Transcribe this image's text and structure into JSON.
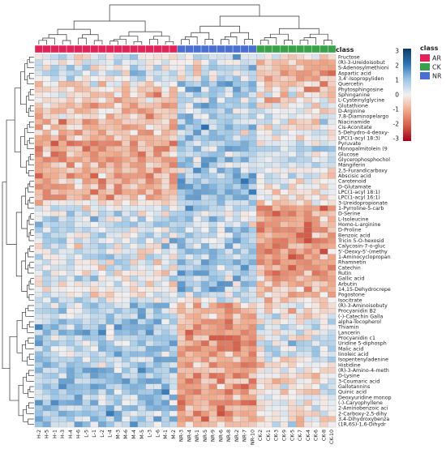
{
  "chart_data": {
    "type": "heatmap",
    "title": "",
    "color_scale": {
      "min": -3,
      "max": 3,
      "ticks": [
        "3",
        "2",
        "1",
        "0",
        "-1",
        "-2",
        "-3"
      ],
      "colors": [
        "#0b3a66",
        "#2f74b5",
        "#9ac5e6",
        "#f3f0f0",
        "#f0aa8c",
        "#d45e4a",
        "#a3001c"
      ]
    },
    "class_legend": {
      "title": "class",
      "header_label": "class",
      "entries": [
        {
          "name": "AR",
          "color": "#e0245a"
        },
        {
          "name": "CK",
          "color": "#3aa04a"
        },
        {
          "name": "NR",
          "color": "#4b6fd0"
        }
      ]
    },
    "columns": [
      "H-2",
      "H-5",
      "H-1",
      "H-3",
      "H-4",
      "H-6",
      "L-5",
      "L-1",
      "L-2",
      "L-4",
      "M-3",
      "M-6",
      "M-4",
      "M-5",
      "L-3",
      "L-6",
      "M-1",
      "M-2",
      "NR-3",
      "NR-4",
      "NR-1",
      "NR-5",
      "NR-9",
      "NR-6",
      "NR-8",
      "NR-2",
      "NR-7",
      "NR-10",
      "CK-2",
      "CK-1",
      "CK-3",
      "CK-9",
      "CK-5",
      "CK-7",
      "CK-4",
      "CK-6",
      "CK-8",
      "CK-10"
    ],
    "column_classes": [
      "AR",
      "AR",
      "AR",
      "AR",
      "AR",
      "AR",
      "AR",
      "AR",
      "AR",
      "AR",
      "AR",
      "AR",
      "AR",
      "AR",
      "AR",
      "AR",
      "AR",
      "AR",
      "NR",
      "NR",
      "NR",
      "NR",
      "NR",
      "NR",
      "NR",
      "NR",
      "NR",
      "NR",
      "CK",
      "CK",
      "CK",
      "CK",
      "CK",
      "CK",
      "CK",
      "CK",
      "CK",
      "CK"
    ],
    "rows": [
      {
        "label": "Fructose",
        "ar": 0.2,
        "nr": 0.6,
        "ck": -0.1
      },
      {
        "label": "(R)-3-Ureidoisobut",
        "ar": 0.4,
        "nr": 0.1,
        "ck": -0.8
      },
      {
        "label": "S-Adenosylmethioni",
        "ar": 0.3,
        "nr": 0.2,
        "ck": -0.9
      },
      {
        "label": "Aspartic acid",
        "ar": 0.4,
        "nr": 0.2,
        "ck": -1.0
      },
      {
        "label": "3,4'-Isopropyliden",
        "ar": 0.2,
        "nr": 0.4,
        "ck": -0.9
      },
      {
        "label": "Quercetin",
        "ar": -0.2,
        "nr": 0.7,
        "ck": -0.8
      },
      {
        "label": "Phytosphingosine",
        "ar": -0.4,
        "nr": 0.9,
        "ck": -0.6
      },
      {
        "label": "Sphinganine",
        "ar": -0.6,
        "nr": 0.8,
        "ck": -0.4
      },
      {
        "label": "L-Cysteinylglycine",
        "ar": -0.5,
        "nr": 0.6,
        "ck": -0.3
      },
      {
        "label": "Glutathione",
        "ar": -0.6,
        "nr": 0.7,
        "ck": -0.2
      },
      {
        "label": "D-Arginine",
        "ar": -0.7,
        "nr": 0.6,
        "ck": 0.0
      },
      {
        "label": "7,8-Diaminopelargo",
        "ar": -0.7,
        "nr": 0.5,
        "ck": 0.1
      },
      {
        "label": "Niacinamide",
        "ar": -0.8,
        "nr": 0.7,
        "ck": 0.0
      },
      {
        "label": "Cis-Aconitate",
        "ar": -0.8,
        "nr": 0.8,
        "ck": -0.1
      },
      {
        "label": "5-Dehydro-4-deoxy-",
        "ar": -0.9,
        "nr": 0.7,
        "ck": 0.2
      },
      {
        "label": "LPC(1-acyl 18:3)",
        "ar": -1.0,
        "nr": 1.0,
        "ck": 0.1
      },
      {
        "label": "Pyruvate",
        "ar": -1.1,
        "nr": 0.9,
        "ck": 0.2
      },
      {
        "label": "Monopalmitolein (9",
        "ar": -1.0,
        "nr": 0.8,
        "ck": 0.3
      },
      {
        "label": "Glucose",
        "ar": -1.0,
        "nr": 0.7,
        "ck": 0.4
      },
      {
        "label": "Glycerophosphochol",
        "ar": -1.1,
        "nr": 0.9,
        "ck": 0.2
      },
      {
        "label": "Mangiferin",
        "ar": -0.9,
        "nr": 0.7,
        "ck": 0.3
      },
      {
        "label": "2,5-Furandicarboxy",
        "ar": -1.0,
        "nr": 0.8,
        "ck": 0.2
      },
      {
        "label": "Abscisic acid",
        "ar": -1.0,
        "nr": 0.7,
        "ck": 0.3
      },
      {
        "label": "Carotenoid",
        "ar": -0.9,
        "nr": 1.0,
        "ck": 0.0
      },
      {
        "label": "D-Glutamate",
        "ar": -0.9,
        "nr": 1.1,
        "ck": -0.1
      },
      {
        "label": "LPC(1-acyl 18:1)",
        "ar": -1.0,
        "nr": 1.2,
        "ck": -0.1
      },
      {
        "label": "LPC(1-acyl 16:1)",
        "ar": -0.8,
        "nr": 1.1,
        "ck": -0.2
      },
      {
        "label": "3-Ureidopropionate",
        "ar": -0.4,
        "nr": 0.8,
        "ck": -0.5
      },
      {
        "label": "1-Pyrroline-5-carb",
        "ar": 0.3,
        "nr": 0.6,
        "ck": -1.1
      },
      {
        "label": "D-Serine",
        "ar": 0.4,
        "nr": 0.5,
        "ck": -1.1
      },
      {
        "label": "L-Isoleucine",
        "ar": 0.5,
        "nr": 0.4,
        "ck": -1.1
      },
      {
        "label": "Homo-L-arginine",
        "ar": 0.5,
        "nr": 0.5,
        "ck": -1.2
      },
      {
        "label": "D-Proline",
        "ar": 0.4,
        "nr": 0.6,
        "ck": -1.2
      },
      {
        "label": "Benzoic acid",
        "ar": 0.3,
        "nr": 0.7,
        "ck": -1.2
      },
      {
        "label": "Tricin 5-O-hexosid",
        "ar": 0.3,
        "nr": 0.8,
        "ck": -1.3
      },
      {
        "label": "Calycosin-7-o-gluc",
        "ar": 0.2,
        "nr": 0.8,
        "ck": -1.2
      },
      {
        "label": "5'-Deoxy-5'-(methy",
        "ar": 0.2,
        "nr": 0.9,
        "ck": -1.3
      },
      {
        "label": "1-Aminocyclopropan",
        "ar": 0.2,
        "nr": 0.8,
        "ck": -1.2
      },
      {
        "label": "Rhamnetin",
        "ar": 0.1,
        "nr": 0.9,
        "ck": -1.2
      },
      {
        "label": "Catechin",
        "ar": 0.1,
        "nr": 0.8,
        "ck": -1.1
      },
      {
        "label": "Rutin",
        "ar": 0.0,
        "nr": 0.9,
        "ck": -1.1
      },
      {
        "label": "Gallic acid",
        "ar": 0.0,
        "nr": 0.8,
        "ck": -1.0
      },
      {
        "label": "Arbutin",
        "ar": -0.1,
        "nr": 0.9,
        "ck": -0.9
      },
      {
        "label": "14,15-Dehydrocrepe",
        "ar": 0.0,
        "nr": 0.7,
        "ck": -0.8
      },
      {
        "label": "Pogostone",
        "ar": 0.1,
        "nr": 0.6,
        "ck": -0.8
      },
      {
        "label": "Isocitrate",
        "ar": 0.3,
        "nr": 0.2,
        "ck": -0.6
      },
      {
        "label": "(R)-3-Aminoisobuty",
        "ar": 0.6,
        "nr": -0.6,
        "ck": -0.2
      },
      {
        "label": "Procyanidin B2",
        "ar": 0.7,
        "nr": -0.8,
        "ck": -0.1
      },
      {
        "label": "(-)-Catechin Galla",
        "ar": 0.7,
        "nr": -0.9,
        "ck": 0.0
      },
      {
        "label": "alpha-Tocopherol",
        "ar": 0.8,
        "nr": -1.0,
        "ck": 0.0
      },
      {
        "label": "Thiamin",
        "ar": 0.8,
        "nr": -1.1,
        "ck": 0.1
      },
      {
        "label": "Lancerin",
        "ar": 0.8,
        "nr": -1.2,
        "ck": 0.2
      },
      {
        "label": "Procyanidin c1",
        "ar": 0.8,
        "nr": -1.3,
        "ck": 0.3
      },
      {
        "label": "Uridine 5-diphosph",
        "ar": 0.7,
        "nr": -1.4,
        "ck": 0.4
      },
      {
        "label": "Malic acid",
        "ar": 0.7,
        "nr": -1.5,
        "ck": 0.5
      },
      {
        "label": "linoleic acid",
        "ar": 0.7,
        "nr": -1.3,
        "ck": 0.4
      },
      {
        "label": "Isopentenyladenine",
        "ar": 0.8,
        "nr": -1.1,
        "ck": 0.1
      },
      {
        "label": "Histidine",
        "ar": 0.9,
        "nr": -1.2,
        "ck": 0.0
      },
      {
        "label": "(R)-3-Amino-4-meth",
        "ar": 0.9,
        "nr": -1.1,
        "ck": 0.0
      },
      {
        "label": "D-Lysine",
        "ar": 0.9,
        "nr": -1.2,
        "ck": -0.1
      },
      {
        "label": "3-Coumaric acid",
        "ar": 0.9,
        "nr": -1.1,
        "ck": -0.2
      },
      {
        "label": "Gallotannins",
        "ar": 0.8,
        "nr": -1.0,
        "ck": -0.1
      },
      {
        "label": "Quinic acid",
        "ar": 0.9,
        "nr": -1.1,
        "ck": -0.2
      },
      {
        "label": "Deoxyuridine monop",
        "ar": 0.8,
        "nr": -1.0,
        "ck": -0.2
      },
      {
        "label": "(-)-Caryophyllene",
        "ar": 0.8,
        "nr": -1.1,
        "ck": -0.1
      },
      {
        "label": "2-Aminobenzoic aci",
        "ar": 0.9,
        "nr": -1.0,
        "ck": -0.2
      },
      {
        "label": "2-Carboxy-2,5-dihy",
        "ar": 0.8,
        "nr": -1.1,
        "ck": -0.1
      },
      {
        "label": "3,4-Dihydroxybenza",
        "ar": 0.8,
        "nr": -1.0,
        "ck": -0.1
      },
      {
        "label": "(1R,6S)-1,6-Dihydr",
        "ar": 0.7,
        "nr": -0.9,
        "ck": -0.1
      }
    ],
    "row_dendrogram": "hierarchical clustering of metabolites",
    "col_dendrogram": "hierarchical clustering of samples"
  }
}
